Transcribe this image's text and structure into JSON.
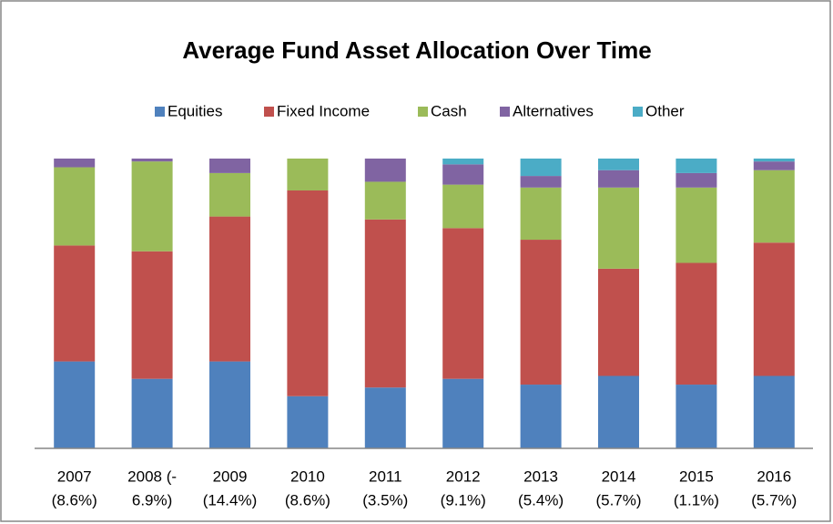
{
  "chart_data": {
    "type": "bar",
    "stacking": "percent",
    "title": "Average Fund Asset Allocation Over Time",
    "categories": [
      [
        "2007",
        "(8.6%)"
      ],
      [
        "2008 (-",
        "6.9%)"
      ],
      [
        "2009",
        "(14.4%)"
      ],
      [
        "2010",
        "(8.6%)"
      ],
      [
        "2011",
        "(3.5%)"
      ],
      [
        "2012",
        "(9.1%)"
      ],
      [
        "2013",
        "(5.4%)"
      ],
      [
        "2014",
        "(5.7%)"
      ],
      [
        "2015",
        "(1.1%)"
      ],
      [
        "2016",
        "(5.7%)"
      ]
    ],
    "series": [
      {
        "name": "Equities",
        "color": "#4f81bd",
        "values": [
          30,
          24,
          30,
          18,
          21,
          24,
          22,
          25,
          22,
          25
        ]
      },
      {
        "name": "Fixed Income",
        "color": "#c0504d",
        "values": [
          40,
          44,
          50,
          71,
          58,
          52,
          50,
          37,
          42,
          46
        ]
      },
      {
        "name": "Cash",
        "color": "#9bbb59",
        "values": [
          27,
          31,
          15,
          11,
          13,
          15,
          18,
          28,
          26,
          25
        ]
      },
      {
        "name": "Alternatives",
        "color": "#8064a2",
        "values": [
          3,
          1,
          5,
          0,
          8,
          7,
          4,
          6,
          5,
          3
        ]
      },
      {
        "name": "Other",
        "color": "#4bacc6",
        "values": [
          0,
          0,
          0,
          0,
          0,
          2,
          6,
          4,
          5,
          1
        ]
      }
    ],
    "legend": "top"
  }
}
